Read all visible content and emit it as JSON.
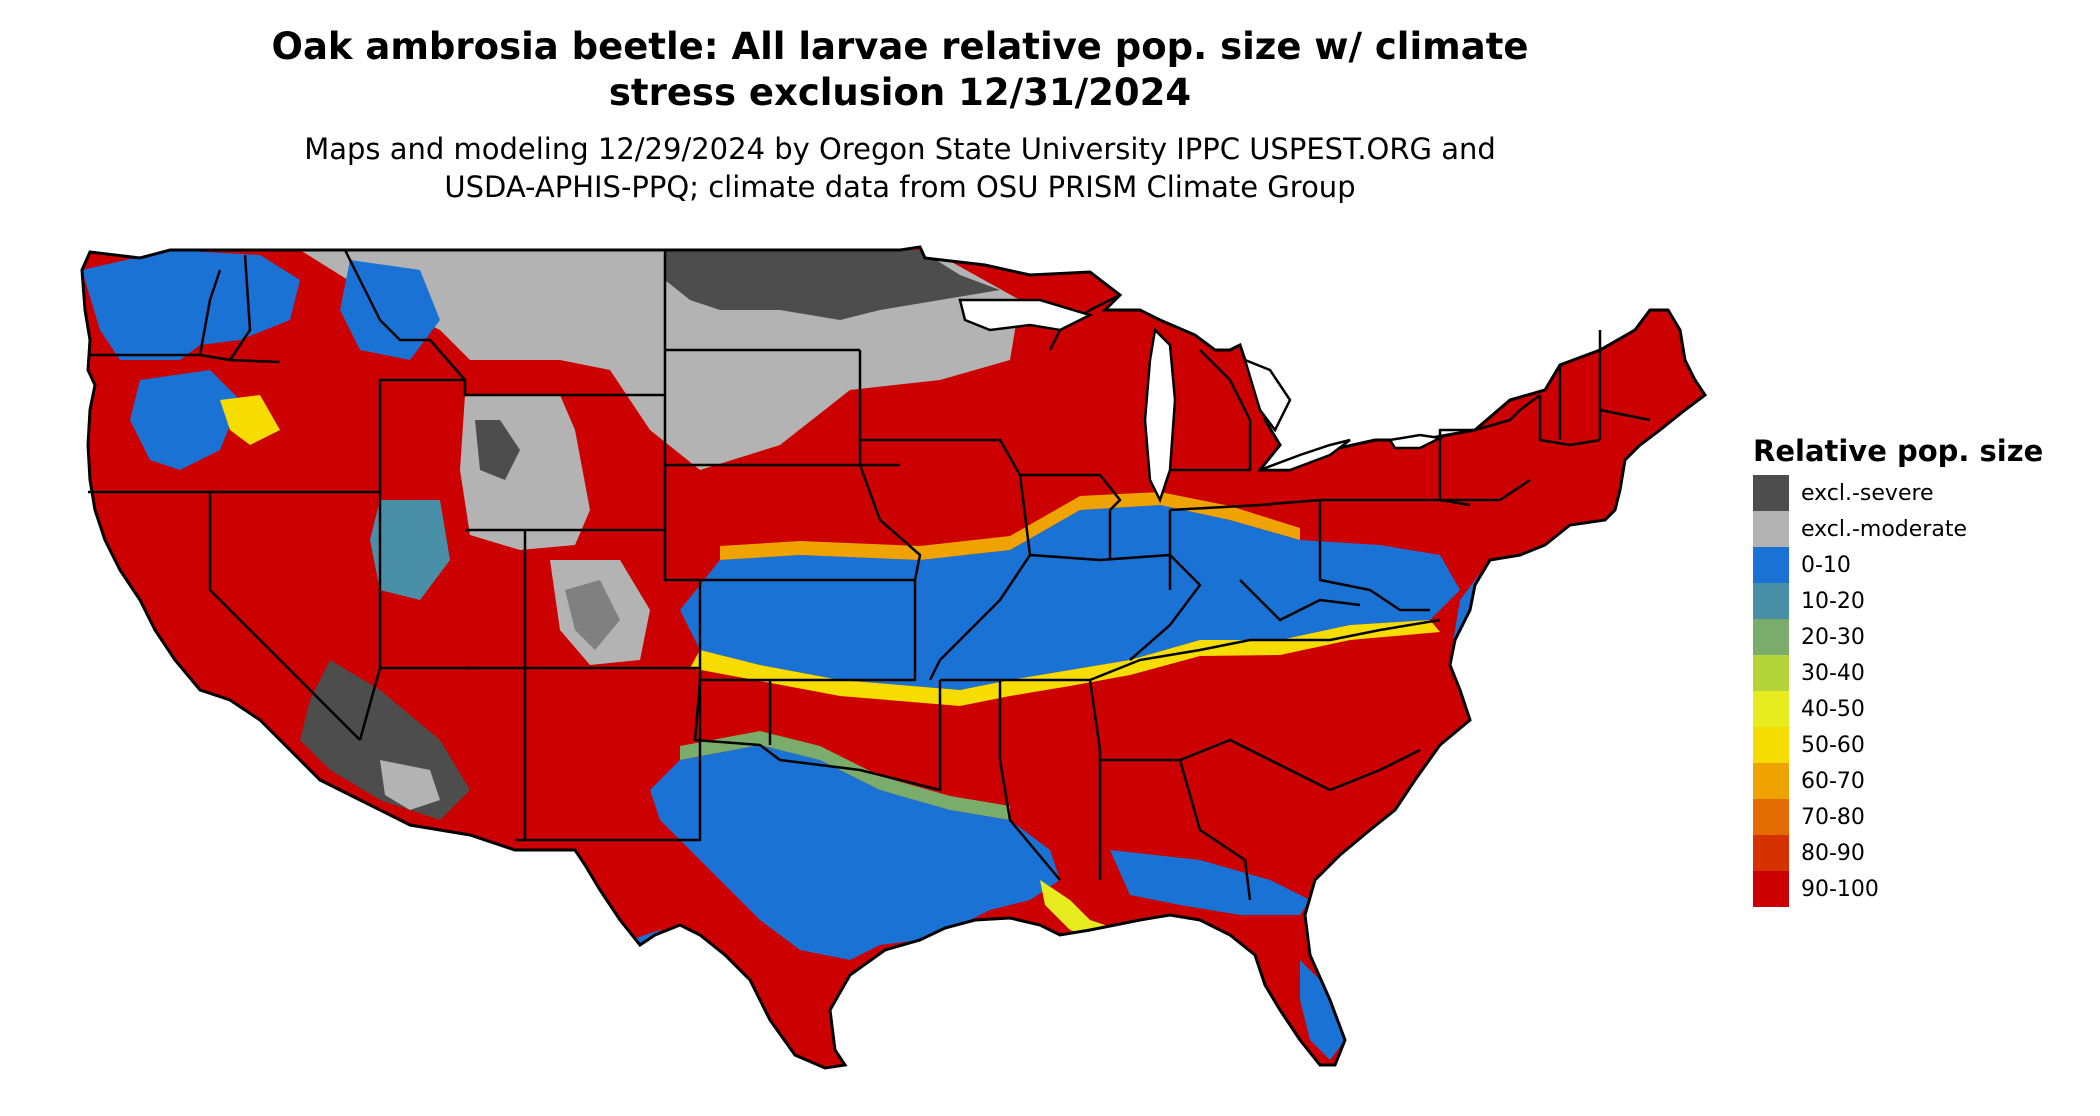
{
  "header": {
    "title_line1": "Oak ambrosia beetle: All larvae relative pop. size w/ climate",
    "title_line2": "stress exclusion 12/31/2024",
    "subtitle_line1": "Maps and modeling 12/29/2024 by Oregon State University IPPC USPEST.ORG and",
    "subtitle_line2": "USDA-APHIS-PPQ; climate data from OSU PRISM Climate Group"
  },
  "legend": {
    "title": "Relative pop. size",
    "items": [
      {
        "label": "excl.-severe",
        "color": "#4d4d4d"
      },
      {
        "label": "excl.-moderate",
        "color": "#b3b3b3"
      },
      {
        "label": "0-10",
        "color": "#1a72d4"
      },
      {
        "label": "10-20",
        "color": "#4a8fa8"
      },
      {
        "label": "20-30",
        "color": "#7aad6c"
      },
      {
        "label": "30-40",
        "color": "#b5d43a"
      },
      {
        "label": "40-50",
        "color": "#e6ec1f"
      },
      {
        "label": "50-60",
        "color": "#f7dc00"
      },
      {
        "label": "60-70",
        "color": "#eea300"
      },
      {
        "label": "70-80",
        "color": "#e36b00"
      },
      {
        "label": "80-90",
        "color": "#d63200"
      },
      {
        "label": "90-100",
        "color": "#cc0000"
      }
    ]
  }
}
